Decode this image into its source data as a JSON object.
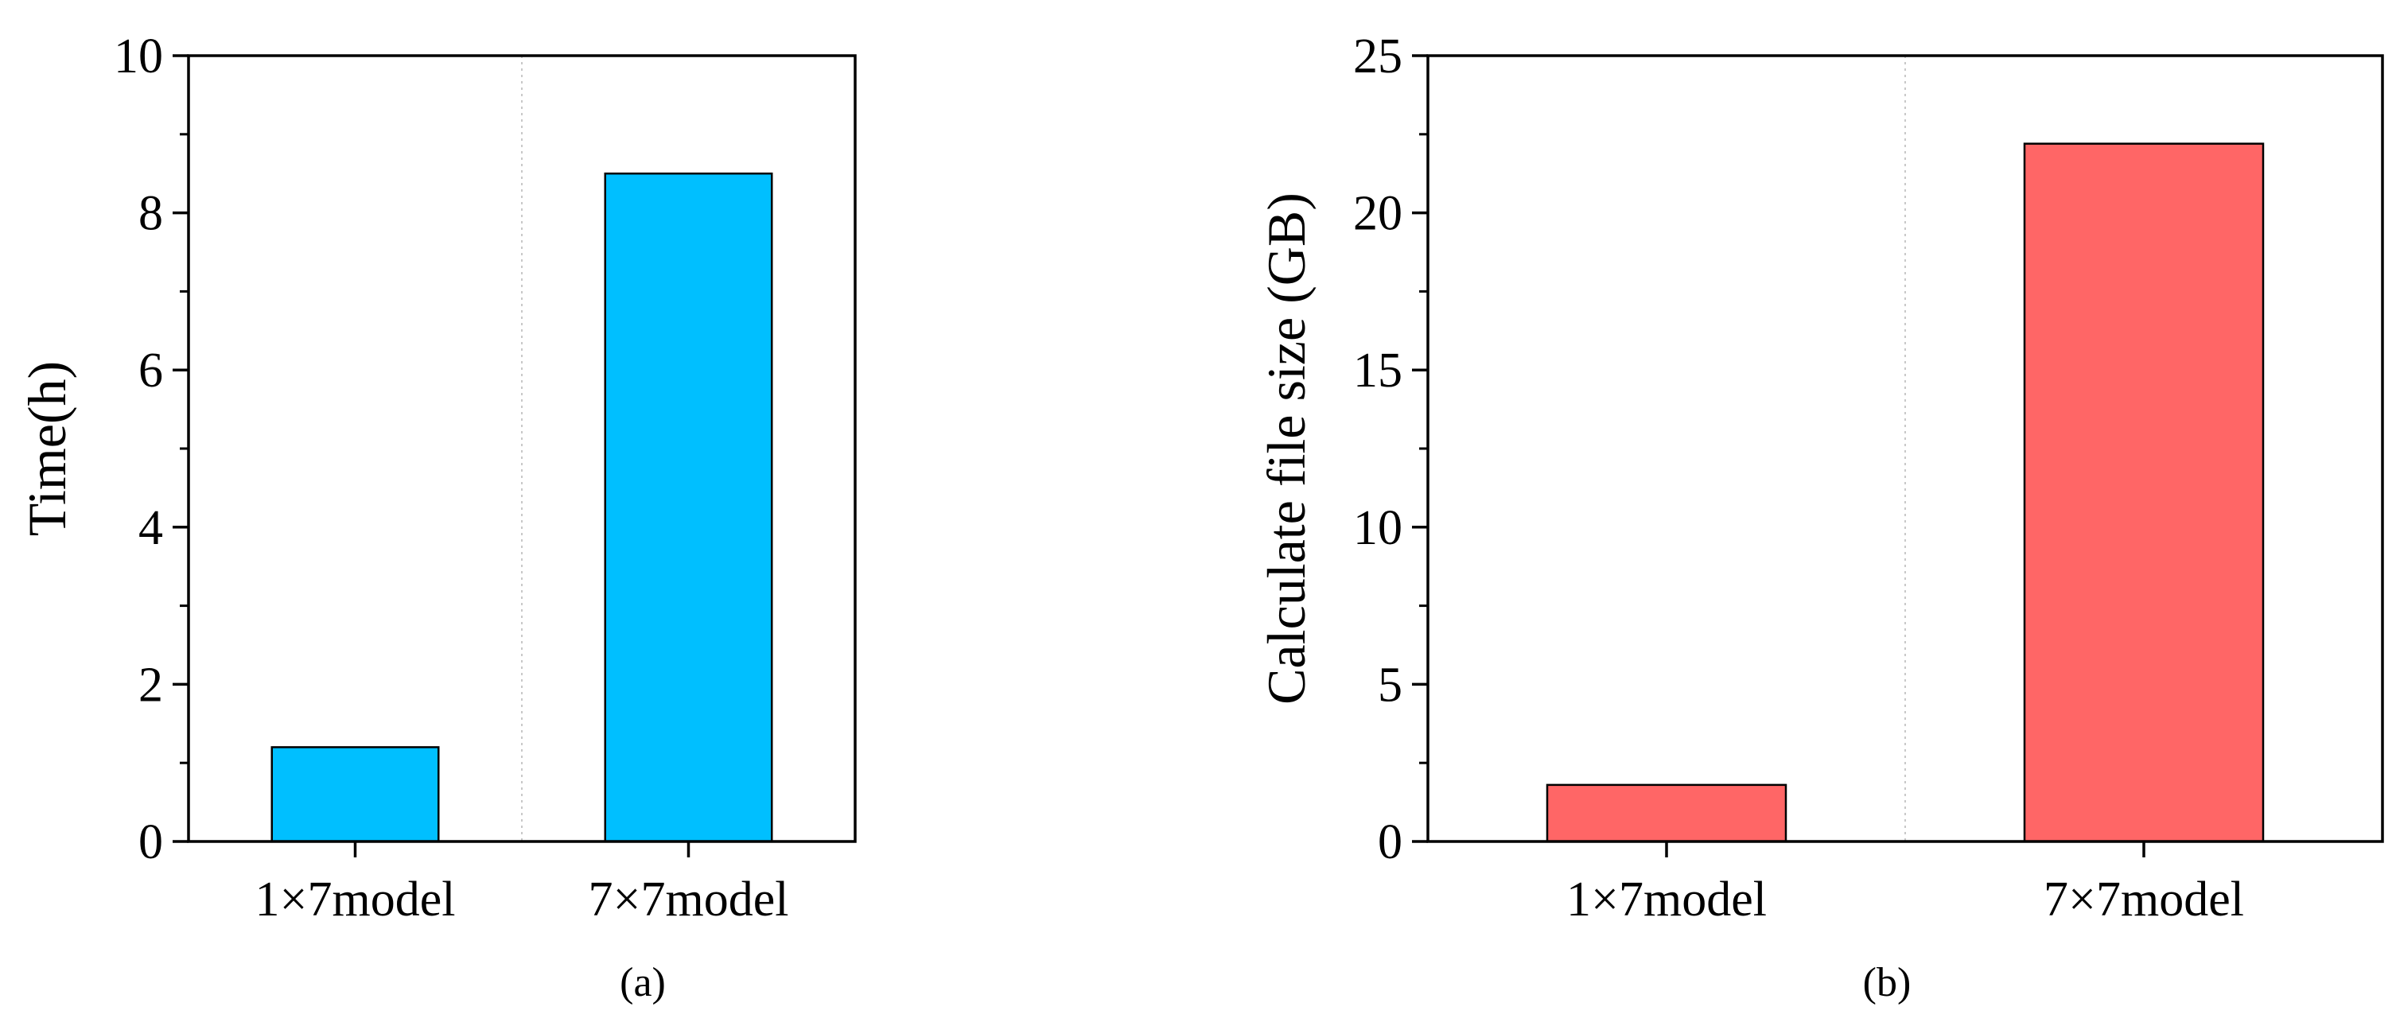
{
  "chart_data": [
    {
      "type": "bar",
      "panel_label": "(a)",
      "categories": [
        "1×7model",
        "7×7model"
      ],
      "values": [
        1.2,
        8.5
      ],
      "title": "",
      "xlabel": "",
      "ylabel": "Time(h)",
      "ylim": [
        0,
        10
      ],
      "yticks": [
        0,
        2,
        4,
        6,
        8,
        10
      ],
      "bar_color": "#00BFFF",
      "grid": "vertical dotted separator between categories",
      "legend": "none"
    },
    {
      "type": "bar",
      "panel_label": "(b)",
      "categories": [
        "1×7model",
        "7×7model"
      ],
      "values": [
        1.8,
        22.2
      ],
      "title": "",
      "xlabel": "",
      "ylabel": "Calculate file size (GB)",
      "ylim": [
        0,
        25
      ],
      "yticks": [
        0,
        5,
        10,
        15,
        20,
        25
      ],
      "bar_color": "#FF6666",
      "grid": "vertical dotted separator between categories",
      "legend": "none"
    }
  ]
}
